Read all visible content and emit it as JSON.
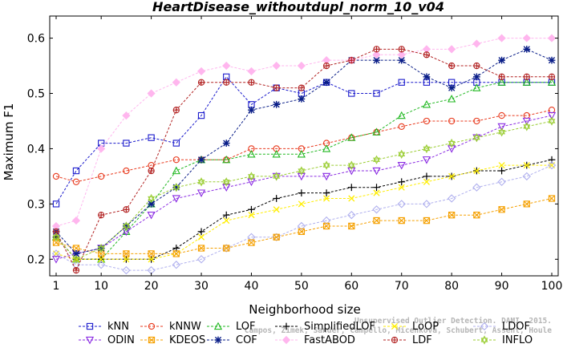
{
  "chart_data": {
    "type": "line",
    "title": "HeartDisease_withoutdupl_norm_10_v04",
    "xlabel": "Neighborhood size",
    "ylabel": "Maximum F1",
    "xlim": [
      1,
      100
    ],
    "ylim": [
      0.17,
      0.64
    ],
    "xticks": [
      "1",
      "10",
      "20",
      "30",
      "40",
      "50",
      "60",
      "70",
      "80",
      "90",
      "100"
    ],
    "yticks": [
      "0.2",
      "0.3",
      "0.4",
      "0.5",
      "0.6"
    ],
    "grid": false,
    "legend_position": "bottom",
    "x": [
      1,
      5,
      10,
      15,
      20,
      25,
      30,
      35,
      40,
      45,
      50,
      55,
      60,
      65,
      70,
      75,
      80,
      85,
      90,
      95,
      100
    ],
    "series": [
      {
        "name": "kNN",
        "color": "#1a1acc",
        "marker": "square",
        "values": [
          0.3,
          0.36,
          0.41,
          0.41,
          0.42,
          0.41,
          0.46,
          0.53,
          0.48,
          0.51,
          0.5,
          0.52,
          0.5,
          0.5,
          0.52,
          0.52,
          0.52,
          0.52,
          0.52,
          0.52,
          0.52
        ]
      },
      {
        "name": "kNNW",
        "color": "#e83a1e",
        "marker": "circle",
        "values": [
          0.35,
          0.34,
          0.35,
          0.36,
          0.37,
          0.38,
          0.38,
          0.38,
          0.4,
          0.4,
          0.4,
          0.41,
          0.42,
          0.43,
          0.44,
          0.45,
          0.45,
          0.45,
          0.46,
          0.46,
          0.47
        ]
      },
      {
        "name": "LOF",
        "color": "#22b822",
        "marker": "triangle-up",
        "values": [
          0.24,
          0.2,
          0.2,
          0.25,
          0.3,
          0.36,
          0.38,
          0.38,
          0.39,
          0.39,
          0.39,
          0.4,
          0.42,
          0.43,
          0.46,
          0.48,
          0.49,
          0.51,
          0.52,
          0.52,
          0.52
        ]
      },
      {
        "name": "SimplifiedLOF",
        "color": "#000000",
        "marker": "plus",
        "values": [
          0.24,
          0.2,
          0.2,
          0.2,
          0.2,
          0.22,
          0.25,
          0.28,
          0.29,
          0.31,
          0.32,
          0.32,
          0.33,
          0.33,
          0.34,
          0.35,
          0.35,
          0.36,
          0.36,
          0.37,
          0.38
        ]
      },
      {
        "name": "LoOP",
        "color": "#ffee00",
        "marker": "x",
        "values": [
          0.21,
          0.2,
          0.2,
          0.2,
          0.2,
          0.21,
          0.24,
          0.27,
          0.28,
          0.29,
          0.3,
          0.31,
          0.31,
          0.32,
          0.33,
          0.34,
          0.35,
          0.36,
          0.37,
          0.37,
          0.37
        ]
      },
      {
        "name": "LDOF",
        "color": "#b0b0ee",
        "marker": "diamond",
        "values": [
          0.21,
          0.19,
          0.19,
          0.18,
          0.18,
          0.19,
          0.2,
          0.22,
          0.24,
          0.24,
          0.26,
          0.27,
          0.28,
          0.29,
          0.3,
          0.3,
          0.31,
          0.33,
          0.34,
          0.35,
          0.37
        ]
      },
      {
        "name": "ODIN",
        "color": "#8a2be2",
        "marker": "triangle-down",
        "values": [
          0.2,
          0.21,
          0.22,
          0.25,
          0.28,
          0.31,
          0.32,
          0.33,
          0.34,
          0.35,
          0.35,
          0.35,
          0.36,
          0.36,
          0.37,
          0.38,
          0.4,
          0.42,
          0.44,
          0.45,
          0.46
        ]
      },
      {
        "name": "KDEOS",
        "color": "#f5a000",
        "marker": "square-x",
        "values": [
          0.23,
          0.22,
          0.21,
          0.21,
          0.21,
          0.21,
          0.22,
          0.22,
          0.23,
          0.24,
          0.25,
          0.26,
          0.26,
          0.27,
          0.27,
          0.27,
          0.28,
          0.28,
          0.29,
          0.3,
          0.31
        ]
      },
      {
        "name": "COF",
        "color": "#0a1e88",
        "marker": "star",
        "values": [
          0.25,
          0.21,
          0.22,
          0.26,
          0.3,
          0.33,
          0.38,
          0.41,
          0.47,
          0.48,
          0.49,
          0.52,
          0.56,
          0.56,
          0.56,
          0.53,
          0.51,
          0.53,
          0.56,
          0.58,
          0.56
        ]
      },
      {
        "name": "FastABOD",
        "color": "#ffb6ee",
        "marker": "diamond-filled",
        "values": [
          0.26,
          0.27,
          0.4,
          0.46,
          0.5,
          0.52,
          0.54,
          0.55,
          0.54,
          0.55,
          0.55,
          0.56,
          0.56,
          0.57,
          0.57,
          0.58,
          0.58,
          0.59,
          0.6,
          0.6,
          0.6
        ]
      },
      {
        "name": "LDF",
        "color": "#b22222",
        "marker": "circle-plus",
        "values": [
          0.25,
          0.18,
          0.28,
          0.29,
          0.36,
          0.47,
          0.52,
          0.52,
          0.52,
          0.51,
          0.51,
          0.55,
          0.56,
          0.58,
          0.58,
          0.57,
          0.55,
          0.55,
          0.53,
          0.53,
          0.53
        ]
      },
      {
        "name": "INFLO",
        "color": "#9acd32",
        "marker": "hexstar",
        "values": [
          0.24,
          0.2,
          0.22,
          0.26,
          0.31,
          0.33,
          0.34,
          0.34,
          0.35,
          0.35,
          0.36,
          0.37,
          0.37,
          0.38,
          0.39,
          0.4,
          0.41,
          0.42,
          0.43,
          0.44,
          0.45
        ]
      }
    ]
  },
  "watermark": [
    "Campos, Zimek, Sander, Campello, Micenková, Schubert, Assent, Houle",
    "Unsupervised Outlier Detection. DAMI, 2015."
  ]
}
